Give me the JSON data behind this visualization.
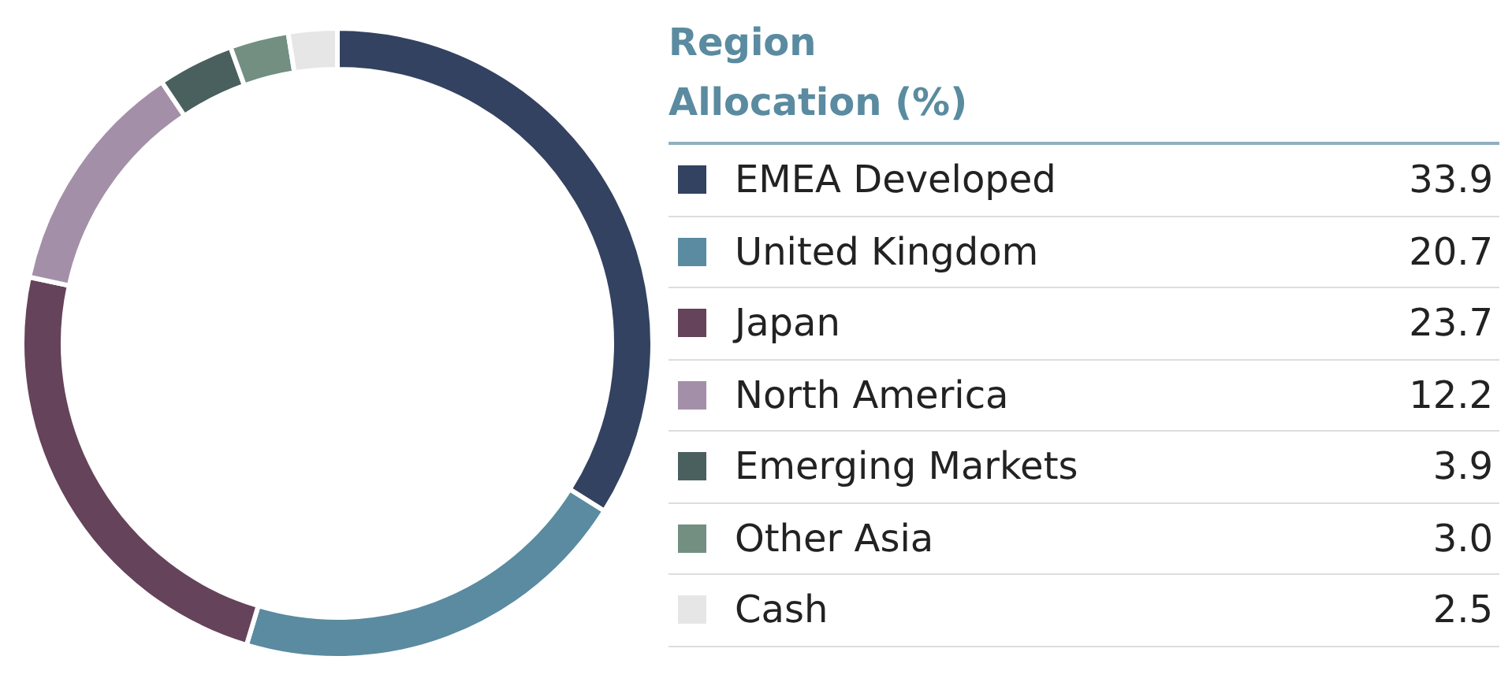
{
  "chart_data": {
    "type": "donut",
    "title": "Region Allocation (%)",
    "categories": [
      "EMEA Developed",
      "United Kingdom",
      "Japan",
      "North America",
      "Emerging Markets",
      "Other Asia",
      "Cash"
    ],
    "values": [
      33.9,
      20.7,
      23.7,
      12.2,
      3.9,
      3.0,
      2.5
    ],
    "colors": [
      "#334260",
      "#5a8ba0",
      "#65435a",
      "#a48fa8",
      "#4a605e",
      "#728f82",
      "#e6e6e6"
    ],
    "value_labels": [
      "33.9",
      "20.7",
      "23.7",
      "12.2",
      "3.9",
      "3.0",
      "2.5"
    ],
    "legend": "right"
  }
}
